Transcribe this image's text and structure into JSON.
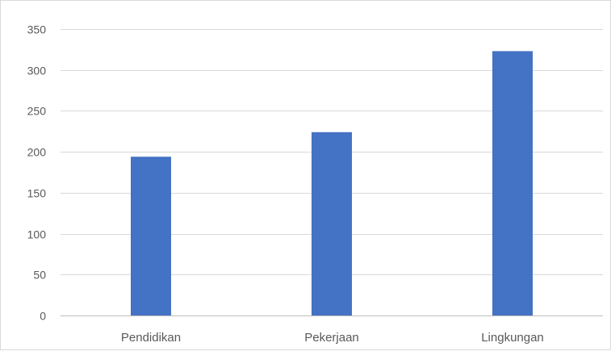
{
  "chart_data": {
    "type": "bar",
    "categories": [
      "Pendidikan",
      "Pekerjaan",
      "Lingkungan"
    ],
    "values": [
      194,
      224,
      323
    ],
    "ylim": [
      0,
      350
    ],
    "yticks": [
      0,
      50,
      100,
      150,
      200,
      250,
      300,
      350
    ],
    "grid": true,
    "legend": "none",
    "bar_color": "#4472C4",
    "title": "",
    "xlabel": "",
    "ylabel": ""
  }
}
